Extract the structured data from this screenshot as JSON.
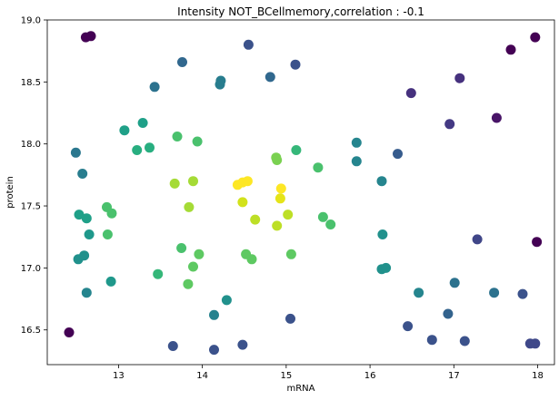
{
  "chart_data": {
    "type": "scatter",
    "title": "Intensity NOT_BCellmemory,correlation : -0.1",
    "xlabel": "mRNA",
    "ylabel": "protein",
    "xlim": [
      12.15,
      18.2
    ],
    "ylim": [
      16.22,
      19.0
    ],
    "xticks": [
      13,
      14,
      15,
      16,
      17,
      18
    ],
    "yticks": [
      16.5,
      17.0,
      17.5,
      18.0,
      18.5,
      19.0
    ],
    "xtick_labels": [
      "13",
      "14",
      "15",
      "16",
      "17",
      "18"
    ],
    "ytick_labels": [
      "16.5",
      "17.0",
      "17.5",
      "18.0",
      "18.5",
      "19.0"
    ],
    "grid": false,
    "colormap": "viridis",
    "points": [
      {
        "x": 12.41,
        "y": 16.48,
        "c": "#440154"
      },
      {
        "x": 12.61,
        "y": 18.86,
        "c": "#440154"
      },
      {
        "x": 12.67,
        "y": 18.87,
        "c": "#440154"
      },
      {
        "x": 17.68,
        "y": 18.76,
        "c": "#440154"
      },
      {
        "x": 17.97,
        "y": 18.86,
        "c": "#440154"
      },
      {
        "x": 17.99,
        "y": 17.21,
        "c": "#440154"
      },
      {
        "x": 17.51,
        "y": 18.21,
        "c": "#481467"
      },
      {
        "x": 16.49,
        "y": 18.41,
        "c": "#46317e"
      },
      {
        "x": 17.07,
        "y": 18.53,
        "c": "#46317e"
      },
      {
        "x": 16.95,
        "y": 18.16,
        "c": "#443983"
      },
      {
        "x": 17.28,
        "y": 17.23,
        "c": "#404688"
      },
      {
        "x": 17.91,
        "y": 16.39,
        "c": "#3f4889"
      },
      {
        "x": 17.97,
        "y": 16.39,
        "c": "#3f4889"
      },
      {
        "x": 17.82,
        "y": 16.79,
        "c": "#3b528b"
      },
      {
        "x": 15.11,
        "y": 18.64,
        "c": "#3b528b"
      },
      {
        "x": 14.55,
        "y": 18.8,
        "c": "#3b528b"
      },
      {
        "x": 13.65,
        "y": 16.37,
        "c": "#3b528b"
      },
      {
        "x": 14.14,
        "y": 16.34,
        "c": "#3b528b"
      },
      {
        "x": 14.48,
        "y": 16.38,
        "c": "#3b528b"
      },
      {
        "x": 15.05,
        "y": 16.59,
        "c": "#3b528b"
      },
      {
        "x": 16.74,
        "y": 16.42,
        "c": "#3b528b"
      },
      {
        "x": 17.13,
        "y": 16.41,
        "c": "#3b528b"
      },
      {
        "x": 16.45,
        "y": 16.53,
        "c": "#3b528b"
      },
      {
        "x": 16.33,
        "y": 17.92,
        "c": "#365c8d"
      },
      {
        "x": 16.93,
        "y": 16.63,
        "c": "#33638d"
      },
      {
        "x": 13.76,
        "y": 18.66,
        "c": "#31688e"
      },
      {
        "x": 14.81,
        "y": 18.54,
        "c": "#31688e"
      },
      {
        "x": 13.43,
        "y": 18.46,
        "c": "#2c728e"
      },
      {
        "x": 17.48,
        "y": 16.8,
        "c": "#2c728e"
      },
      {
        "x": 17.01,
        "y": 16.88,
        "c": "#2c728e"
      },
      {
        "x": 14.21,
        "y": 18.48,
        "c": "#287d8e"
      },
      {
        "x": 14.22,
        "y": 18.51,
        "c": "#287d8e"
      },
      {
        "x": 12.49,
        "y": 17.93,
        "c": "#2a778e"
      },
      {
        "x": 12.57,
        "y": 17.76,
        "c": "#287d8e"
      },
      {
        "x": 14.14,
        "y": 16.62,
        "c": "#26828e"
      },
      {
        "x": 14.29,
        "y": 16.74,
        "c": "#21918c"
      },
      {
        "x": 12.62,
        "y": 16.8,
        "c": "#25858e"
      },
      {
        "x": 16.58,
        "y": 16.8,
        "c": "#25858e"
      },
      {
        "x": 16.14,
        "y": 17.7,
        "c": "#25858e"
      },
      {
        "x": 15.84,
        "y": 17.86,
        "c": "#25858e"
      },
      {
        "x": 15.84,
        "y": 18.01,
        "c": "#25858e"
      },
      {
        "x": 16.15,
        "y": 17.27,
        "c": "#21918c"
      },
      {
        "x": 16.14,
        "y": 16.99,
        "c": "#21918c"
      },
      {
        "x": 16.19,
        "y": 17.0,
        "c": "#21918c"
      },
      {
        "x": 12.52,
        "y": 17.07,
        "c": "#21918c"
      },
      {
        "x": 12.59,
        "y": 17.1,
        "c": "#21918c"
      },
      {
        "x": 12.91,
        "y": 16.89,
        "c": "#1f988b"
      },
      {
        "x": 12.65,
        "y": 17.27,
        "c": "#1f988b"
      },
      {
        "x": 12.53,
        "y": 17.43,
        "c": "#1fa088"
      },
      {
        "x": 12.62,
        "y": 17.4,
        "c": "#1fa088"
      },
      {
        "x": 13.07,
        "y": 18.11,
        "c": "#1fa088"
      },
      {
        "x": 13.29,
        "y": 18.17,
        "c": "#1fa088"
      },
      {
        "x": 13.22,
        "y": 17.95,
        "c": "#28ae80"
      },
      {
        "x": 13.37,
        "y": 17.97,
        "c": "#28ae80"
      },
      {
        "x": 13.47,
        "y": 16.95,
        "c": "#35b779"
      },
      {
        "x": 15.12,
        "y": 17.95,
        "c": "#35b779"
      },
      {
        "x": 13.7,
        "y": 18.06,
        "c": "#4ac16d"
      },
      {
        "x": 13.94,
        "y": 18.02,
        "c": "#4ac16d"
      },
      {
        "x": 15.38,
        "y": 17.81,
        "c": "#4ac16d"
      },
      {
        "x": 15.44,
        "y": 17.41,
        "c": "#4ac16d"
      },
      {
        "x": 15.53,
        "y": 17.35,
        "c": "#4ac16d"
      },
      {
        "x": 12.86,
        "y": 17.49,
        "c": "#4ac16d"
      },
      {
        "x": 12.92,
        "y": 17.44,
        "c": "#4ac16d"
      },
      {
        "x": 12.87,
        "y": 17.27,
        "c": "#4ac16d"
      },
      {
        "x": 13.75,
        "y": 17.16,
        "c": "#4ac16d"
      },
      {
        "x": 13.96,
        "y": 17.11,
        "c": "#5ec962"
      },
      {
        "x": 13.89,
        "y": 17.01,
        "c": "#5ec962"
      },
      {
        "x": 13.83,
        "y": 16.87,
        "c": "#5ec962"
      },
      {
        "x": 14.52,
        "y": 17.11,
        "c": "#5ec962"
      },
      {
        "x": 14.59,
        "y": 17.07,
        "c": "#5ec962"
      },
      {
        "x": 15.06,
        "y": 17.11,
        "c": "#5ec962"
      },
      {
        "x": 14.88,
        "y": 17.89,
        "c": "#7ad151"
      },
      {
        "x": 14.89,
        "y": 17.87,
        "c": "#7ad151"
      },
      {
        "x": 13.67,
        "y": 17.68,
        "c": "#a5db36"
      },
      {
        "x": 13.89,
        "y": 17.7,
        "c": "#a5db36"
      },
      {
        "x": 13.84,
        "y": 17.49,
        "c": "#a5db36"
      },
      {
        "x": 14.63,
        "y": 17.39,
        "c": "#bddf26"
      },
      {
        "x": 14.89,
        "y": 17.34,
        "c": "#bddf26"
      },
      {
        "x": 15.02,
        "y": 17.43,
        "c": "#bddf26"
      },
      {
        "x": 14.48,
        "y": 17.53,
        "c": "#d2e21b"
      },
      {
        "x": 14.93,
        "y": 17.56,
        "c": "#e5e419"
      },
      {
        "x": 14.94,
        "y": 17.64,
        "c": "#fde725"
      },
      {
        "x": 14.42,
        "y": 17.67,
        "c": "#fde725"
      },
      {
        "x": 14.48,
        "y": 17.69,
        "c": "#fde725"
      },
      {
        "x": 14.54,
        "y": 17.7,
        "c": "#fde725"
      }
    ]
  }
}
